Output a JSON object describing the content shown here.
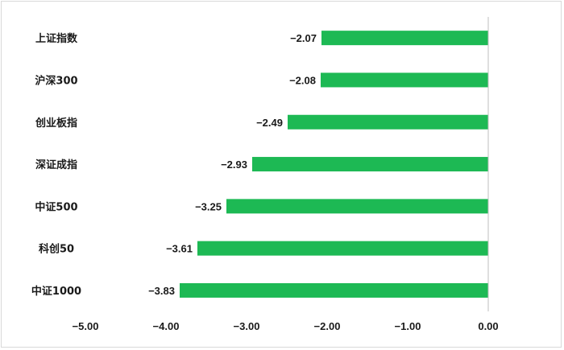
{
  "chart_data": {
    "type": "bar",
    "orientation": "horizontal",
    "categories": [
      "上证指数",
      "沪深300",
      "创业板指",
      "深证成指",
      "中证500",
      "科创50",
      "中证1000"
    ],
    "values": [
      -2.07,
      -2.08,
      -2.49,
      -2.93,
      -3.25,
      -3.61,
      -3.83
    ],
    "value_labels": [
      "−2.07",
      "−2.08",
      "−2.49",
      "−2.93",
      "−3.25",
      "−3.61",
      "−3.83"
    ],
    "xlim": [
      -5,
      0
    ],
    "x_ticks": [
      -5,
      -4,
      -3,
      -2,
      -1,
      0
    ],
    "x_tick_labels": [
      "−5.00",
      "−4.00",
      "−3.00",
      "−2.00",
      "−1.00",
      "0.00"
    ],
    "title": "",
    "xlabel": "",
    "ylabel": "",
    "grid": false,
    "legend": "none",
    "bar_color": "#1db954",
    "axis_color": "#bfbfbf"
  }
}
